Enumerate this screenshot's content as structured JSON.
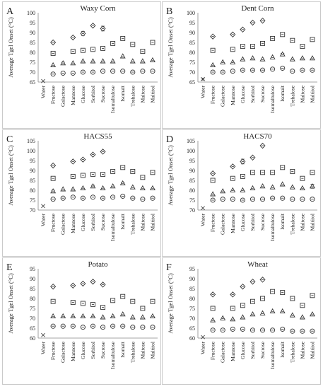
{
  "figure": {
    "ylabel": "Average Tgel Onset (°C)",
    "categories": [
      "Water",
      "Fructose",
      "Galactose",
      "Mannose",
      "Glucose",
      "Sorbitol",
      "Sucrose",
      "Isomaltulose",
      "Isomalt",
      "Trehalose",
      "Maltose",
      "Maltitol"
    ]
  },
  "chart_data": [
    {
      "panel": "A",
      "title": "Waxy Corn",
      "type": "scatter",
      "ylim": [
        65,
        100
      ],
      "yticks": [
        65,
        70,
        75,
        80,
        85,
        90,
        95,
        100
      ],
      "categories": [
        "Water",
        "Fructose",
        "Galactose",
        "Mannose",
        "Glucose",
        "Sorbitol",
        "Sucrose",
        "Isomaltulose",
        "Isomalt",
        "Trehalose",
        "Maltose",
        "Maltitol"
      ],
      "series": [
        {
          "marker": "diamond",
          "values": [
            null,
            85.0,
            null,
            87.5,
            89.5,
            93.5,
            92.0,
            null,
            null,
            null,
            null,
            null
          ],
          "errors": [
            0,
            0.5,
            0,
            0.5,
            1.0,
            0.5,
            1.2,
            0,
            0,
            0,
            0,
            0
          ]
        },
        {
          "marker": "square",
          "values": [
            null,
            79.5,
            null,
            80.5,
            81.0,
            81.5,
            82.0,
            84.5,
            87.0,
            84.0,
            80.5,
            85.0
          ],
          "errors": [
            0,
            0.5,
            0,
            0.5,
            0.5,
            0.5,
            0.5,
            0.8,
            0.6,
            0.4,
            0.5,
            0.4
          ]
        },
        {
          "marker": "triangle",
          "values": [
            null,
            73.5,
            74.5,
            74.5,
            75.5,
            75.5,
            75.5,
            75.5,
            78.0,
            75.5,
            75.5,
            76.0
          ],
          "errors": [
            0,
            0.3,
            0.5,
            0.3,
            0.3,
            0.3,
            0.3,
            0.3,
            0.3,
            0.3,
            0.3,
            0.3
          ]
        },
        {
          "marker": "circle",
          "values": [
            null,
            69.0,
            69.5,
            69.5,
            70.0,
            70.0,
            70.5,
            70.5,
            70.5,
            70.0,
            70.5,
            70.5
          ],
          "errors": [
            0,
            0,
            0,
            0,
            0,
            0,
            0,
            0,
            0,
            0,
            0,
            0
          ]
        },
        {
          "marker": "x",
          "values": [
            65.5,
            null,
            null,
            null,
            null,
            null,
            null,
            null,
            null,
            null,
            null,
            null
          ],
          "errors": [
            0.3,
            0,
            0,
            0,
            0,
            0,
            0,
            0,
            0,
            0,
            0,
            0
          ]
        }
      ]
    },
    {
      "panel": "B",
      "title": "Dent Corn",
      "type": "scatter",
      "ylim": [
        65,
        100
      ],
      "yticks": [
        65,
        70,
        75,
        80,
        85,
        90,
        95,
        100
      ],
      "categories": [
        "Water",
        "Fructose",
        "Galactose",
        "Mannose",
        "Glucose",
        "Sorbitol",
        "Sucrose",
        "Isomaltulose",
        "Isomalt",
        "Trehalose",
        "Maltose",
        "Maltitol"
      ],
      "series": [
        {
          "marker": "diamond",
          "values": [
            null,
            88.0,
            null,
            89.0,
            91.5,
            95.0,
            96.0,
            null,
            null,
            null,
            null,
            null
          ],
          "errors": [
            0,
            0.5,
            0,
            0.5,
            0.5,
            0.5,
            0.5,
            0,
            0,
            0,
            0,
            0
          ]
        },
        {
          "marker": "square",
          "values": [
            null,
            81.0,
            null,
            81.5,
            83.0,
            83.0,
            84.5,
            87.0,
            89.0,
            86.0,
            83.0,
            86.5
          ],
          "errors": [
            0,
            0.5,
            0,
            0.5,
            0.5,
            0.5,
            0.5,
            0.5,
            0.5,
            0.4,
            0.5,
            0.4
          ]
        },
        {
          "marker": "triangle",
          "values": [
            null,
            73.5,
            75.0,
            75.0,
            76.5,
            77.0,
            76.5,
            77.5,
            79.0,
            76.5,
            77.0,
            77.0
          ],
          "errors": [
            0,
            0.3,
            0.3,
            0.3,
            0.3,
            0.3,
            0.3,
            0.3,
            0.5,
            0.3,
            0.3,
            0.3
          ]
        },
        {
          "marker": "circle",
          "values": [
            null,
            70.0,
            70.0,
            70.5,
            71.0,
            71.0,
            71.0,
            71.5,
            72.0,
            70.5,
            71.0,
            71.0
          ],
          "errors": [
            0,
            0,
            0,
            0,
            0,
            0,
            0,
            0,
            0,
            0,
            0,
            0
          ]
        },
        {
          "marker": "x",
          "values": [
            66.5,
            null,
            null,
            null,
            null,
            null,
            null,
            null,
            null,
            null,
            null,
            null
          ],
          "errors": [
            0.5,
            0,
            0,
            0,
            0,
            0,
            0,
            0,
            0,
            0,
            0,
            0
          ]
        }
      ]
    },
    {
      "panel": "C",
      "title": "HACS55",
      "type": "scatter",
      "ylim": [
        70,
        105
      ],
      "yticks": [
        70,
        75,
        80,
        85,
        90,
        95,
        100,
        105
      ],
      "categories": [
        "Water",
        "Fructose",
        "Galactose",
        "Mannose",
        "Glucose",
        "Sorbitol",
        "Sucrose",
        "Isomaltulose",
        "Isomalt",
        "Trehalose",
        "Maltose",
        "Maltitol"
      ],
      "series": [
        {
          "marker": "diamond",
          "values": [
            null,
            92.5,
            null,
            94.5,
            95.5,
            98.0,
            99.5,
            null,
            null,
            null,
            null,
            null
          ],
          "errors": [
            0,
            0.5,
            0,
            0.5,
            0.5,
            0.5,
            0.5,
            0,
            0,
            0,
            0,
            0
          ]
        },
        {
          "marker": "square",
          "values": [
            null,
            86.0,
            null,
            87.0,
            87.5,
            88.0,
            88.0,
            89.5,
            91.5,
            89.5,
            86.5,
            89.0
          ],
          "errors": [
            0,
            0.5,
            0,
            0.5,
            0.5,
            0.5,
            0.5,
            0.5,
            0.5,
            0.5,
            0.5,
            0.5
          ]
        },
        {
          "marker": "triangle",
          "values": [
            null,
            79.5,
            80.5,
            80.5,
            81.0,
            82.0,
            81.0,
            82.0,
            83.5,
            81.5,
            81.0,
            81.0
          ],
          "errors": [
            0,
            0.5,
            0.3,
            0.3,
            0.3,
            0.5,
            0.3,
            0.3,
            0.5,
            0.3,
            0.3,
            0.3
          ]
        },
        {
          "marker": "circle",
          "values": [
            null,
            75.5,
            76.0,
            76.5,
            76.0,
            76.5,
            76.0,
            76.5,
            77.0,
            76.0,
            75.5,
            76.0
          ],
          "errors": [
            0,
            0,
            0,
            0,
            0,
            0,
            0,
            0,
            0,
            0,
            0,
            0
          ]
        },
        {
          "marker": "x",
          "values": [
            72.0,
            null,
            null,
            null,
            null,
            null,
            null,
            null,
            null,
            null,
            null,
            null
          ],
          "errors": [
            0,
            0,
            0,
            0,
            0,
            0,
            0,
            0,
            0,
            0,
            0,
            0
          ]
        }
      ]
    },
    {
      "panel": "D",
      "title": "HACS70",
      "type": "scatter",
      "ylim": [
        70,
        105
      ],
      "yticks": [
        70,
        75,
        80,
        85,
        90,
        95,
        100,
        105
      ],
      "categories": [
        "Water",
        "Fructose",
        "Galactose",
        "Mannose",
        "Glucose",
        "Sorbitol",
        "Sucrose",
        "Isomaltulose",
        "Isomalt",
        "Trehalose",
        "Maltose",
        "Maltitol"
      ],
      "series": [
        {
          "marker": "diamond",
          "values": [
            null,
            88.5,
            null,
            92.0,
            94.5,
            96.5,
            102.5,
            null,
            null,
            null,
            null,
            null
          ],
          "errors": [
            0,
            0.5,
            0,
            0.5,
            1.2,
            0.5,
            0.5,
            0,
            0,
            0,
            0,
            0
          ]
        },
        {
          "marker": "square",
          "values": [
            null,
            85.0,
            null,
            86.0,
            87.0,
            89.0,
            89.0,
            89.0,
            91.5,
            89.5,
            86.0,
            89.0
          ],
          "errors": [
            0,
            0.5,
            0,
            0.5,
            0.5,
            1.0,
            1.0,
            1.0,
            0.5,
            0.5,
            0.5,
            0.5
          ]
        },
        {
          "marker": "triangle",
          "values": [
            null,
            78.0,
            79.5,
            80.0,
            80.0,
            81.0,
            82.0,
            81.5,
            83.0,
            81.5,
            81.0,
            82.0
          ],
          "errors": [
            0,
            0.3,
            0.3,
            0.3,
            0.3,
            0.3,
            0.3,
            0.3,
            0.3,
            0.3,
            0.3,
            1.0
          ]
        },
        {
          "marker": "circle",
          "values": [
            null,
            75.0,
            75.5,
            75.5,
            75.0,
            75.5,
            75.5,
            76.0,
            76.0,
            75.5,
            75.5,
            75.5
          ],
          "errors": [
            0,
            0,
            0,
            0,
            0,
            0,
            0,
            0,
            0,
            0,
            0,
            0
          ]
        },
        {
          "marker": "x",
          "values": [
            71.0,
            null,
            null,
            null,
            null,
            null,
            null,
            null,
            null,
            null,
            null,
            null
          ],
          "errors": [
            0,
            0,
            0,
            0,
            0,
            0,
            0,
            0,
            0,
            0,
            0,
            0
          ]
        }
      ]
    },
    {
      "panel": "E",
      "title": "Potato",
      "type": "scatter",
      "ylim": [
        60,
        95
      ],
      "yticks": [
        60,
        65,
        70,
        75,
        80,
        85,
        90,
        95
      ],
      "categories": [
        "Water",
        "Fructose",
        "Galactose",
        "Mannose",
        "Glucose",
        "Sorbitol",
        "Sucrose",
        "Isomaltulose",
        "Isomalt",
        "Trehalose",
        "Maltose",
        "Maltitol"
      ],
      "series": [
        {
          "marker": "diamond",
          "values": [
            null,
            86.0,
            null,
            86.5,
            87.5,
            88.5,
            87.0,
            null,
            null,
            null,
            null,
            null
          ],
          "errors": [
            0,
            0.5,
            0,
            0.5,
            0.5,
            0.5,
            0.5,
            0,
            0,
            0,
            0,
            0
          ]
        },
        {
          "marker": "square",
          "values": [
            null,
            78.5,
            null,
            78.0,
            77.5,
            77.0,
            75.5,
            79.0,
            81.0,
            78.5,
            75.0,
            78.5
          ],
          "errors": [
            0,
            0.5,
            0,
            0.5,
            0.5,
            0.5,
            0.5,
            0.5,
            0.5,
            0.5,
            0.5,
            0.5
          ]
        },
        {
          "marker": "triangle",
          "values": [
            null,
            71.0,
            71.0,
            71.0,
            71.0,
            71.0,
            70.5,
            71.0,
            72.0,
            70.5,
            70.5,
            71.0
          ],
          "errors": [
            0,
            0.3,
            0.3,
            0.3,
            0.3,
            0.3,
            0.3,
            0.3,
            0.3,
            0.3,
            0.3,
            0.3
          ]
        },
        {
          "marker": "circle",
          "values": [
            null,
            66.0,
            66.0,
            66.0,
            65.5,
            66.0,
            65.5,
            66.0,
            66.0,
            65.5,
            65.5,
            65.5
          ],
          "errors": [
            0,
            0,
            0,
            0,
            0,
            0,
            0,
            0,
            0,
            0,
            0,
            0
          ]
        },
        {
          "marker": "x",
          "values": [
            61.5,
            null,
            null,
            null,
            null,
            null,
            null,
            null,
            null,
            null,
            null,
            null
          ],
          "errors": [
            0,
            0,
            0,
            0,
            0,
            0,
            0,
            0,
            0,
            0,
            0,
            0
          ]
        }
      ]
    },
    {
      "panel": "F",
      "title": "Wheat",
      "type": "scatter",
      "ylim": [
        60,
        95
      ],
      "yticks": [
        60,
        65,
        70,
        75,
        80,
        85,
        90,
        95
      ],
      "categories": [
        "Water",
        "Fructose",
        "Galactose",
        "Mannose",
        "Glucose",
        "Sorbitol",
        "Sucrose",
        "Isomaltulose",
        "Isomalt",
        "Trehalose",
        "Maltose",
        "Maltitol"
      ],
      "series": [
        {
          "marker": "diamond",
          "values": [
            null,
            82.0,
            null,
            82.0,
            86.0,
            88.5,
            89.5,
            null,
            null,
            null,
            null,
            null
          ],
          "errors": [
            0,
            0.5,
            0,
            0.5,
            0.5,
            0.5,
            0.5,
            0,
            0,
            0,
            0,
            0
          ]
        },
        {
          "marker": "square",
          "values": [
            null,
            75.0,
            null,
            75.0,
            76.5,
            78.5,
            80.0,
            83.5,
            83.0,
            80.0,
            76.5,
            81.5
          ],
          "errors": [
            0,
            0.5,
            0,
            0.5,
            0.5,
            0.5,
            0.5,
            0.5,
            0.5,
            0.5,
            0.5,
            0.5
          ]
        },
        {
          "marker": "triangle",
          "values": [
            null,
            69.0,
            70.0,
            69.5,
            70.5,
            72.0,
            72.5,
            73.5,
            73.5,
            71.5,
            70.5,
            72.0
          ],
          "errors": [
            0,
            0.3,
            0.3,
            0.3,
            0.3,
            0.3,
            0.3,
            0.3,
            0.3,
            0.3,
            0.3,
            0.3
          ]
        },
        {
          "marker": "circle",
          "values": [
            null,
            64.0,
            64.0,
            64.5,
            64.5,
            64.0,
            64.0,
            64.0,
            64.5,
            63.5,
            63.5,
            63.5
          ],
          "errors": [
            0,
            0,
            0,
            0,
            0,
            0,
            0,
            0,
            0,
            0,
            0,
            0
          ]
        },
        {
          "marker": "x",
          "values": [
            60.5,
            null,
            null,
            null,
            null,
            null,
            null,
            null,
            null,
            null,
            null,
            null
          ],
          "errors": [
            0,
            0,
            0,
            0,
            0,
            0,
            0,
            0,
            0,
            0,
            0,
            0
          ]
        }
      ]
    }
  ]
}
